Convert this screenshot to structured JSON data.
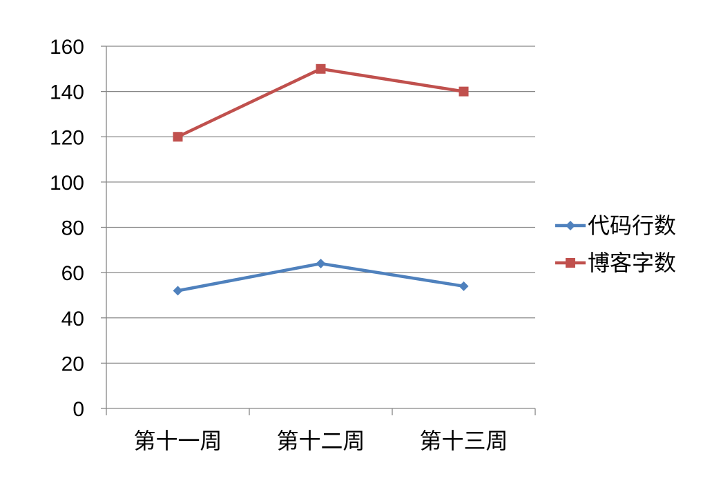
{
  "chart_data": {
    "type": "line",
    "title": "",
    "xlabel": "",
    "ylabel": "",
    "categories": [
      "第十一周",
      "第十二周",
      "第十三周"
    ],
    "ylim": [
      0,
      160
    ],
    "yticks": [
      "0",
      "20",
      "40",
      "60",
      "80",
      "100",
      "120",
      "140",
      "160"
    ],
    "grid": true,
    "legend": "right",
    "series": [
      {
        "name": "代码行数",
        "values": [
          52,
          64,
          54
        ],
        "color": "#4F81BD",
        "marker": "diamond"
      },
      {
        "name": "博客字数",
        "values": [
          120,
          150,
          140
        ],
        "color": "#C0504D",
        "marker": "square"
      }
    ]
  }
}
